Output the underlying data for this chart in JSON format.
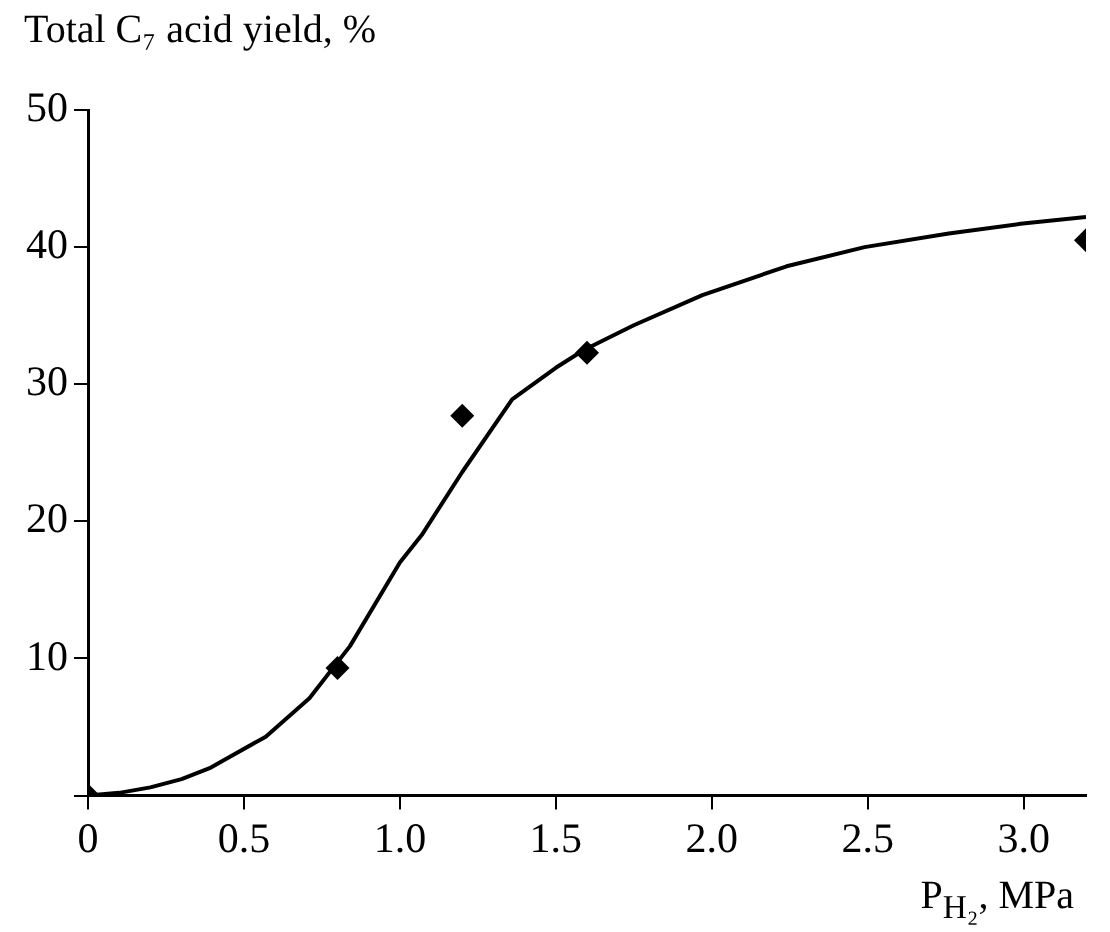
{
  "chart_data": {
    "type": "scatter",
    "ylabel": "Total C₇ acid yield, %",
    "xlabel": "P$_{H₂}$, MPa",
    "xlim": [
      0,
      3.2
    ],
    "ylim": [
      0,
      50
    ],
    "xticks": [
      0,
      0.5,
      {
        "value": 1,
        "label": "1.0"
      },
      1.5,
      {
        "value": 2,
        "label": "2.0"
      },
      2.5,
      {
        "value": 3,
        "label": "3.0"
      }
    ],
    "yticks": [
      {
        "value": 0,
        "label": null
      },
      10,
      20,
      30,
      40,
      50
    ],
    "grid": false,
    "legend": false,
    "series": [
      {
        "marker": "diamond",
        "color": "#000000",
        "x": [
          0,
          0.8,
          1.2,
          1.6,
          3.2
        ],
        "values": [
          0,
          9.3,
          27.7,
          32.3,
          40.5
        ]
      },
      {
        "type": "line",
        "marker": "none",
        "line_style": "solid",
        "color": "#000000",
        "x": [
          0,
          0.1,
          0.2,
          0.3,
          0.39,
          0.57,
          0.71,
          0.84,
          1.0,
          1.07,
          1.2,
          1.36,
          1.5,
          1.59,
          1.75,
          1.97,
          2.24,
          2.49,
          2.76,
          2.99,
          3.2
        ],
        "values": [
          0,
          0.2,
          0.6,
          1.2,
          2.0,
          4.3,
          7.1,
          10.9,
          17.0,
          19.0,
          23.6,
          28.9,
          31.2,
          32.5,
          34.3,
          36.5,
          38.6,
          40.0,
          41.0,
          41.7,
          42.2
        ]
      }
    ]
  }
}
